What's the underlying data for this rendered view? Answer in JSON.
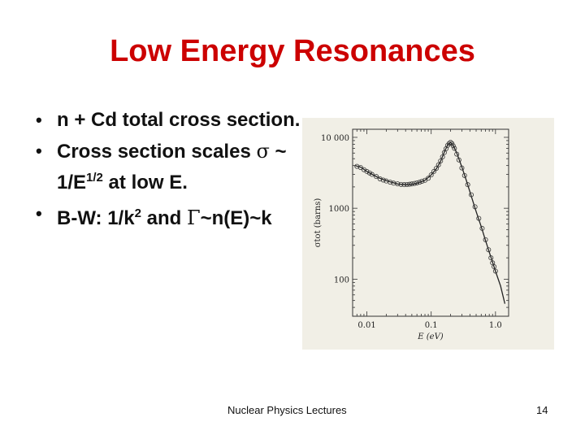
{
  "slide": {
    "title": "Low Energy Resonances",
    "bullets": [
      {
        "parts": [
          {
            "t": "n + Cd total cross section."
          }
        ]
      },
      {
        "parts": [
          {
            "t": "Cross section scales "
          },
          {
            "t": "σ",
            "greek": true
          },
          {
            "t": " ~ 1/E"
          },
          {
            "t": "1/2",
            "sup": true
          },
          {
            "t": " at low E."
          }
        ]
      },
      {
        "parts": [
          {
            "t": "B-W: 1/k"
          },
          {
            "t": "2",
            "sup": true
          },
          {
            "t": " and "
          },
          {
            "t": "Γ",
            "greek": true
          },
          {
            "t": "~n(E)~k"
          }
        ]
      }
    ],
    "footer_text": "Nuclear Physics Lectures",
    "page_number": "14"
  },
  "chart_data": {
    "type": "scatter",
    "x_scale": "log",
    "y_scale": "log",
    "xlim": [
      0.006,
      1.6
    ],
    "ylim": [
      30,
      13000
    ],
    "xticks": [
      0.01,
      0.1,
      1.0
    ],
    "xtick_labels": [
      "0.01",
      "0.1",
      "1.0"
    ],
    "yticks": [
      100,
      1000,
      10000
    ],
    "ytick_labels": [
      "100",
      "1000",
      "10 000"
    ],
    "xlabel": "E (eV)",
    "ylabel": "σtot (barns)",
    "grid": false,
    "series": [
      {
        "kind": "fit-line",
        "x": [
          0.0065,
          0.008,
          0.01,
          0.015,
          0.02,
          0.03,
          0.04,
          0.05,
          0.06,
          0.08,
          0.1,
          0.12,
          0.14,
          0.16,
          0.18,
          0.2,
          0.22,
          0.25,
          0.3,
          0.35,
          0.4,
          0.5,
          0.6,
          0.7,
          0.8,
          1.0,
          1.2,
          1.4
        ],
        "y": [
          4000,
          3800,
          3300,
          2700,
          2450,
          2200,
          2150,
          2170,
          2250,
          2480,
          2950,
          3600,
          4600,
          6200,
          7800,
          8500,
          7700,
          6000,
          3800,
          2500,
          1700,
          900,
          550,
          350,
          240,
          130,
          80,
          45
        ]
      },
      {
        "kind": "points",
        "x": [
          0.007,
          0.008,
          0.009,
          0.01,
          0.011,
          0.012,
          0.014,
          0.016,
          0.018,
          0.02,
          0.023,
          0.026,
          0.03,
          0.034,
          0.038,
          0.042,
          0.046,
          0.05,
          0.055,
          0.06,
          0.066,
          0.072,
          0.08,
          0.09,
          0.1,
          0.11,
          0.12,
          0.13,
          0.14,
          0.15,
          0.16,
          0.17,
          0.18,
          0.19,
          0.2,
          0.21,
          0.22,
          0.23,
          0.25,
          0.27,
          0.3,
          0.33,
          0.37,
          0.42,
          0.48,
          0.55,
          0.62,
          0.7,
          0.78,
          0.85,
          0.9,
          0.95,
          1.0
        ],
        "y": [
          3900,
          3750,
          3500,
          3300,
          3150,
          3000,
          2800,
          2600,
          2500,
          2420,
          2330,
          2260,
          2210,
          2170,
          2150,
          2160,
          2180,
          2200,
          2240,
          2280,
          2330,
          2400,
          2480,
          2650,
          2950,
          3300,
          3650,
          4100,
          4650,
          5300,
          6100,
          6900,
          7700,
          8200,
          8500,
          8200,
          7600,
          7000,
          5800,
          4800,
          3700,
          2900,
          2150,
          1550,
          1050,
          720,
          520,
          360,
          260,
          200,
          170,
          150,
          130
        ]
      }
    ]
  }
}
